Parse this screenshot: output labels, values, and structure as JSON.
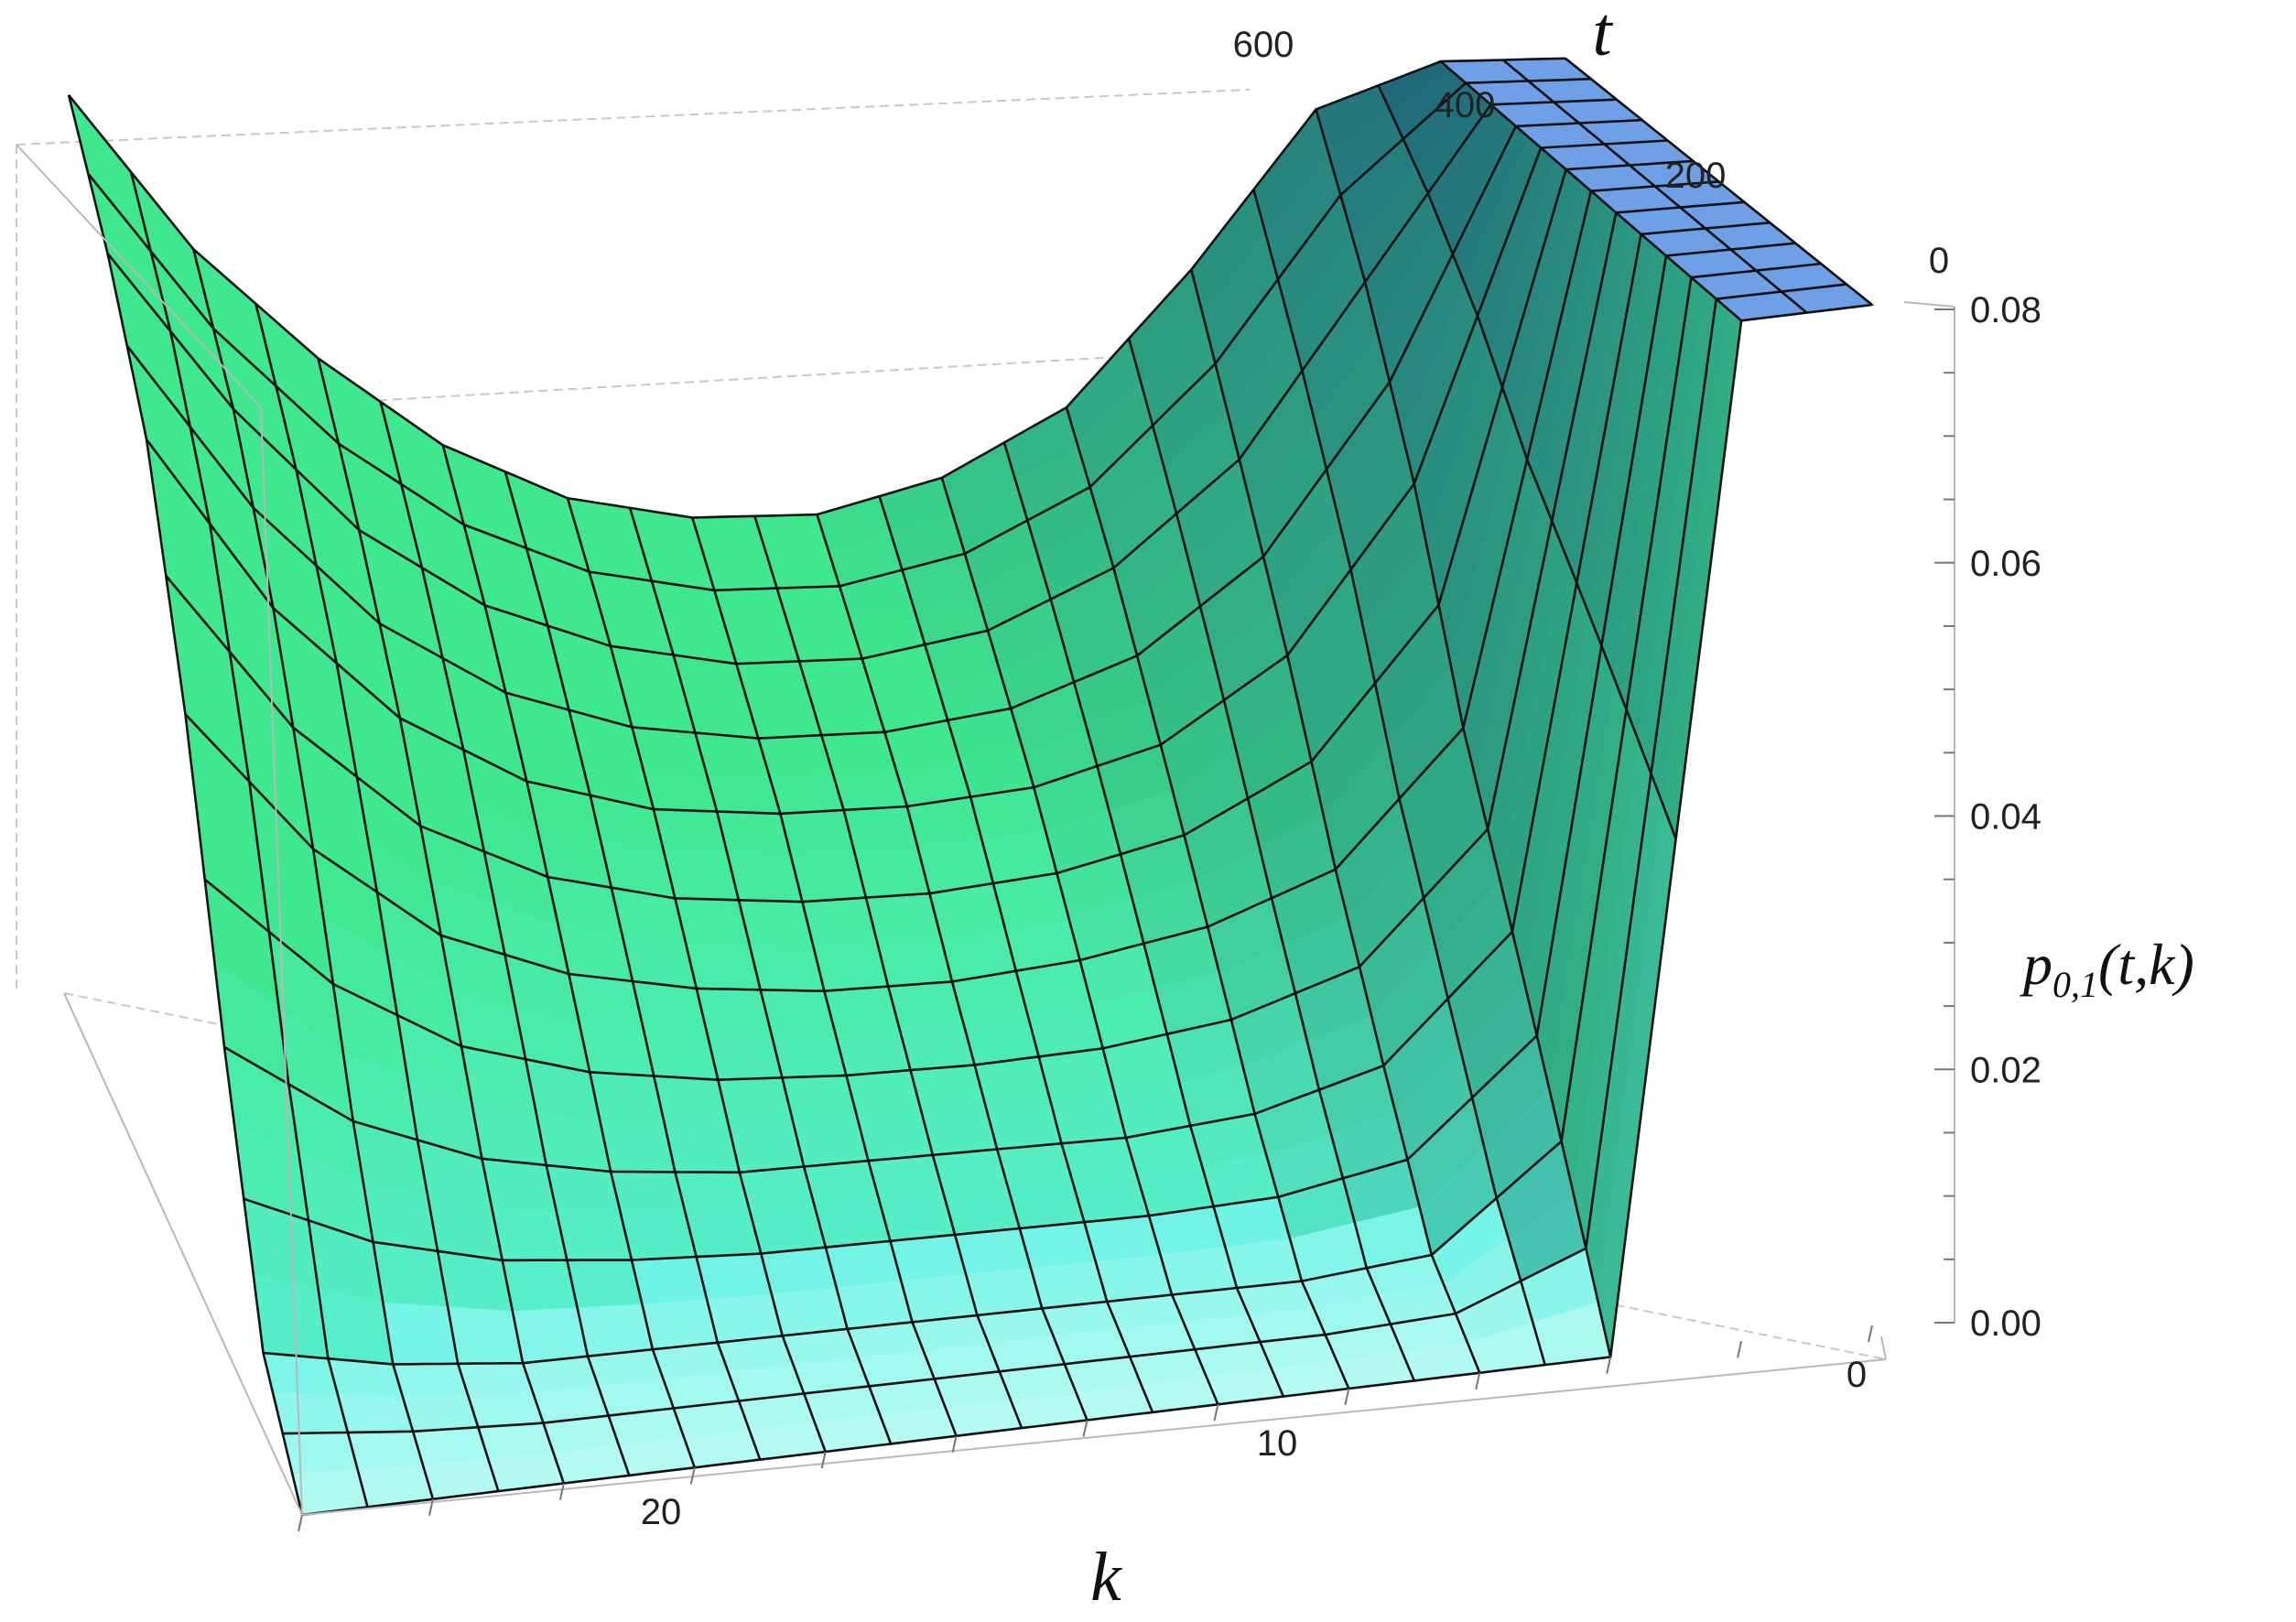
{
  "chart_data": {
    "type": "surface3d",
    "title": "",
    "xlabel": "k",
    "ylabel": "t",
    "zlabel": {
      "base": "p",
      "subscript": "0,1",
      "args": "(t,k)"
    },
    "x_range": [
      0,
      24
    ],
    "y_range": [
      0,
      600
    ],
    "z_range": [
      0,
      0.08
    ],
    "x_ticks": [
      "0",
      "10",
      "20"
    ],
    "y_ticks": [
      "0",
      "200",
      "400",
      "600"
    ],
    "z_ticks": [
      "0.00",
      "0.02",
      "0.04",
      "0.06",
      "0.08"
    ],
    "mesh_k_values": [
      0,
      1,
      2,
      3,
      4,
      5,
      6,
      7,
      8,
      9,
      10,
      11,
      12,
      13,
      14,
      15,
      16,
      17,
      18,
      19,
      20,
      21,
      22,
      23,
      24
    ],
    "mesh_t_values": [
      0,
      50,
      100,
      150,
      200,
      250,
      300,
      350,
      400,
      450,
      500,
      550,
      600
    ],
    "surface_samples": [
      {
        "t": 0,
        "k": [
          0,
          2,
          4,
          6,
          8,
          10,
          12,
          14,
          16,
          18,
          20,
          22,
          24
        ],
        "p": [
          0.08,
          0.08,
          0.0,
          0.0,
          0.0,
          0.0,
          0.0,
          0.0,
          0.0,
          0.0,
          0.0,
          0.0,
          0.0
        ]
      },
      {
        "t": 100,
        "k": [
          0,
          2,
          4,
          6,
          8,
          10,
          12,
          14,
          16,
          18,
          20,
          22,
          24
        ],
        "p": [
          0.08,
          0.08,
          0.012,
          0.004,
          0.003,
          0.003,
          0.003,
          0.003,
          0.003,
          0.003,
          0.003,
          0.004,
          0.006
        ]
      },
      {
        "t": 200,
        "k": [
          0,
          2,
          4,
          6,
          8,
          10,
          12,
          14,
          16,
          18,
          20,
          22,
          24
        ],
        "p": [
          0.08,
          0.08,
          0.024,
          0.014,
          0.011,
          0.01,
          0.01,
          0.01,
          0.01,
          0.011,
          0.013,
          0.017,
          0.024
        ]
      },
      {
        "t": 300,
        "k": [
          0,
          2,
          4,
          6,
          8,
          10,
          12,
          14,
          16,
          18,
          20,
          22,
          24
        ],
        "p": [
          0.08,
          0.08,
          0.036,
          0.025,
          0.021,
          0.019,
          0.018,
          0.018,
          0.019,
          0.021,
          0.025,
          0.033,
          0.045
        ]
      },
      {
        "t": 400,
        "k": [
          0,
          2,
          4,
          6,
          8,
          10,
          12,
          14,
          16,
          18,
          20,
          22,
          24
        ],
        "p": [
          0.08,
          0.08,
          0.052,
          0.038,
          0.031,
          0.028,
          0.027,
          0.027,
          0.028,
          0.031,
          0.037,
          0.047,
          0.062
        ]
      },
      {
        "t": 500,
        "k": [
          0,
          2,
          4,
          6,
          8,
          10,
          12,
          14,
          16,
          18,
          20,
          22,
          24
        ],
        "p": [
          0.08,
          0.08,
          0.065,
          0.05,
          0.041,
          0.036,
          0.034,
          0.034,
          0.036,
          0.04,
          0.047,
          0.058,
          0.072
        ]
      },
      {
        "t": 600,
        "k": [
          0,
          2,
          4,
          6,
          8,
          10,
          12,
          14,
          16,
          18,
          20,
          22,
          24
        ],
        "p": [
          0.08,
          0.08,
          0.076,
          0.062,
          0.05,
          0.044,
          0.041,
          0.041,
          0.043,
          0.048,
          0.056,
          0.066,
          0.08
        ]
      }
    ],
    "colors": {
      "surface_low": "#b8fbf4",
      "surface_mid": "#3fe88f",
      "surface_high": "#1e5e78",
      "surface_top": "#29484a",
      "cap": "#6f9fe6",
      "wall_light": "#e6fca0",
      "mesh": "#111111",
      "box": "#b8b8b8"
    },
    "grid": false,
    "legend": "none"
  }
}
